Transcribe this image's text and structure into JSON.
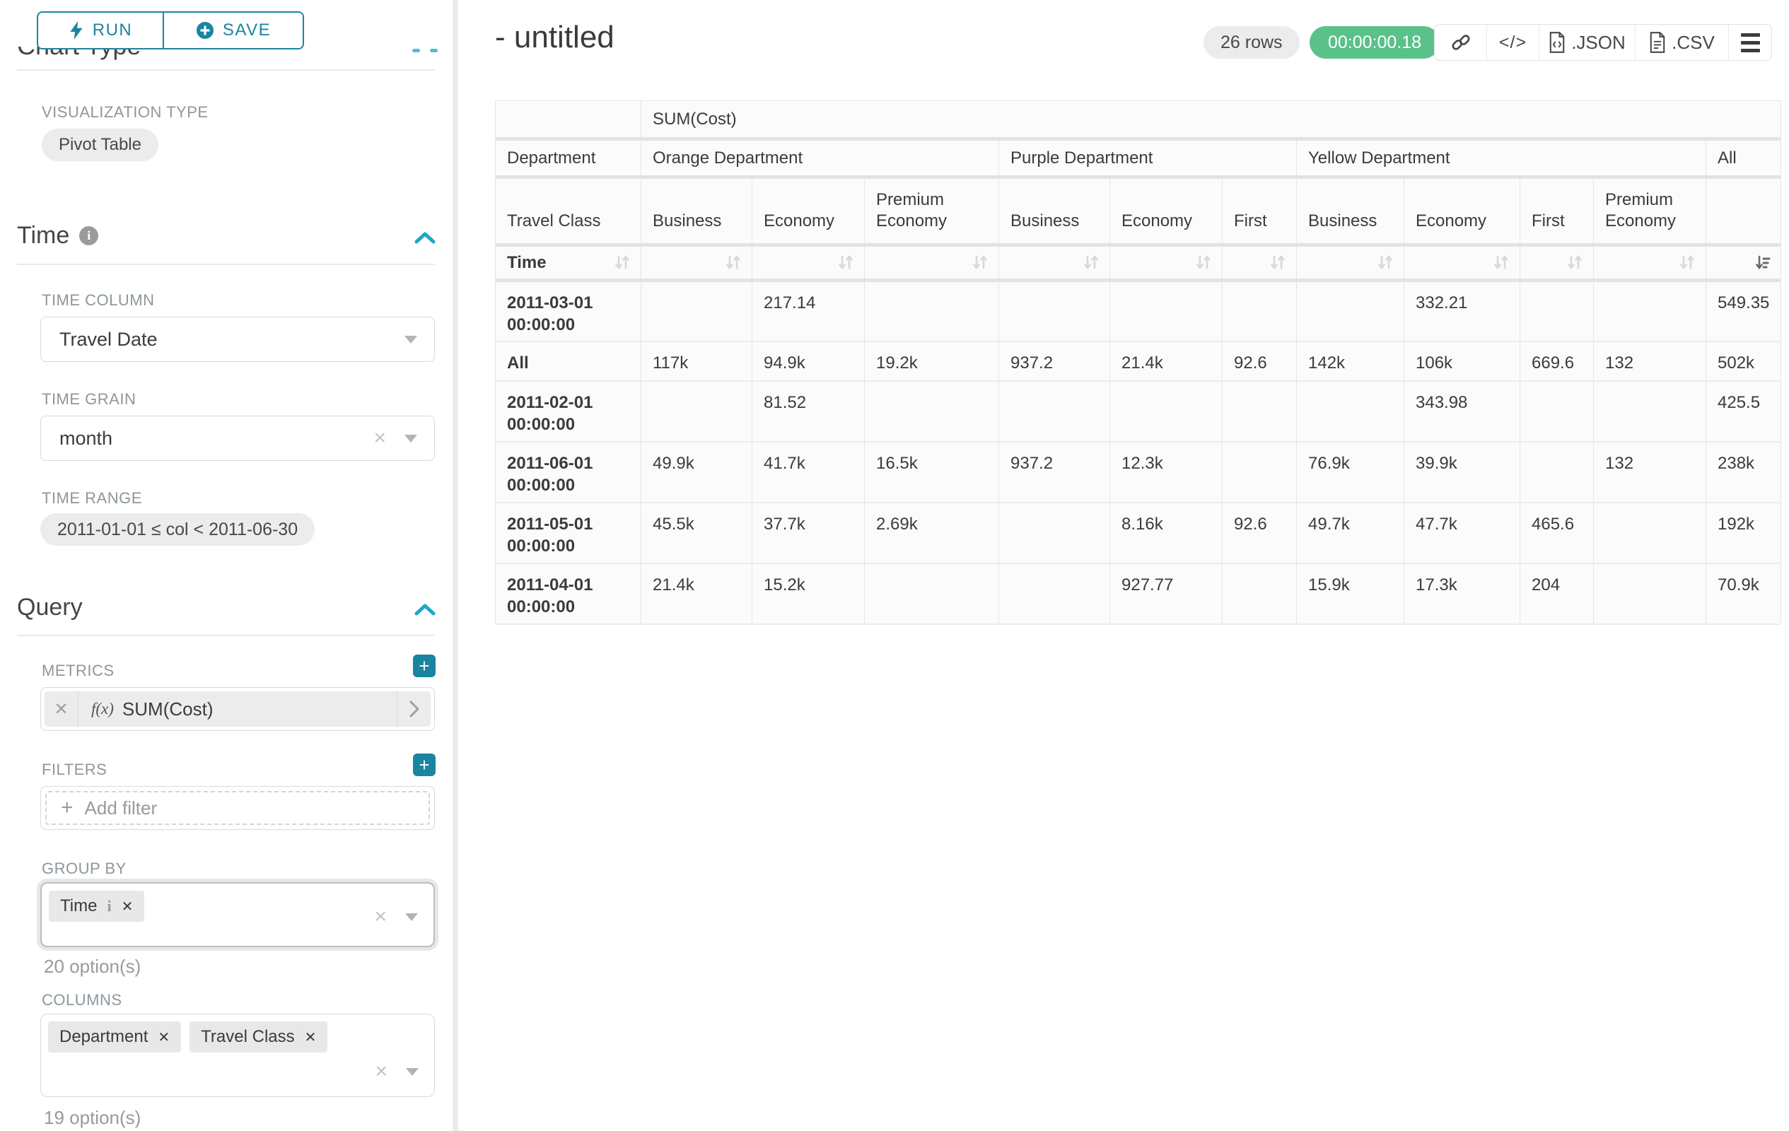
{
  "panel": {
    "run_label": "RUN",
    "save_label": "SAVE",
    "chart_type_heading": "Chart Type",
    "viz_type_label": "VISUALIZATION TYPE",
    "viz_type_value": "Pivot Table",
    "time_section": "Time",
    "time_column_label": "TIME COLUMN",
    "time_column_value": "Travel Date",
    "time_grain_label": "TIME GRAIN",
    "time_grain_value": "month",
    "time_range_label": "TIME RANGE",
    "time_range_value": "2011-01-01 ≤ col < 2011-06-30",
    "query_section": "Query",
    "metrics_label": "METRICS",
    "metric_fx": "f(x)",
    "metric_value": "SUM(Cost)",
    "filters_label": "FILTERS",
    "add_filter_label": "Add filter",
    "group_by_label": "GROUP BY",
    "group_by_tags": [
      "Time"
    ],
    "group_by_options": "20 option(s)",
    "columns_label": "COLUMNS",
    "columns_tags": [
      "Department",
      "Travel Class"
    ],
    "columns_options": "19 option(s)"
  },
  "header": {
    "title": "- untitled",
    "rows_badge": "26 rows",
    "timer": "00:00:00.18",
    "code_glyph": "</>",
    "json_label": ".JSON",
    "csv_label": ".CSV"
  },
  "table": {
    "metric_header": "SUM(Cost)",
    "row1_label": "Department",
    "row2_label": "Travel Class",
    "row3_label": "Time",
    "columns": [
      {
        "group": "Orange Department",
        "cols": [
          "Business",
          "Economy",
          "Premium Economy"
        ]
      },
      {
        "group": "Purple Department",
        "cols": [
          "Business",
          "Economy",
          "First"
        ]
      },
      {
        "group": "Yellow Department",
        "cols": [
          "Business",
          "Economy",
          "First",
          "Premium Economy"
        ]
      },
      {
        "group": "All",
        "cols": [
          ""
        ]
      }
    ],
    "active_sort_col": 10,
    "rows": [
      {
        "label": "2011-03-01 00:00:00",
        "values": [
          "",
          "217.14",
          "",
          "",
          "",
          "",
          "",
          "332.21",
          "",
          "",
          "549.35"
        ]
      },
      {
        "label": "All",
        "values": [
          "117k",
          "94.9k",
          "19.2k",
          "937.2",
          "21.4k",
          "92.6",
          "142k",
          "106k",
          "669.6",
          "132",
          "502k"
        ]
      },
      {
        "label": "2011-02-01 00:00:00",
        "values": [
          "",
          "81.52",
          "",
          "",
          "",
          "",
          "",
          "343.98",
          "",
          "",
          "425.5"
        ]
      },
      {
        "label": "2011-06-01 00:00:00",
        "values": [
          "49.9k",
          "41.7k",
          "16.5k",
          "937.2",
          "12.3k",
          "",
          "76.9k",
          "39.9k",
          "",
          "132",
          "238k"
        ]
      },
      {
        "label": "2011-05-01 00:00:00",
        "values": [
          "45.5k",
          "37.7k",
          "2.69k",
          "",
          "8.16k",
          "92.6",
          "49.7k",
          "47.7k",
          "465.6",
          "",
          "192k"
        ]
      },
      {
        "label": "2011-04-01 00:00:00",
        "values": [
          "21.4k",
          "15.2k",
          "",
          "",
          "927.77",
          "",
          "15.9k",
          "17.3k",
          "204",
          "",
          "70.9k"
        ]
      }
    ]
  }
}
